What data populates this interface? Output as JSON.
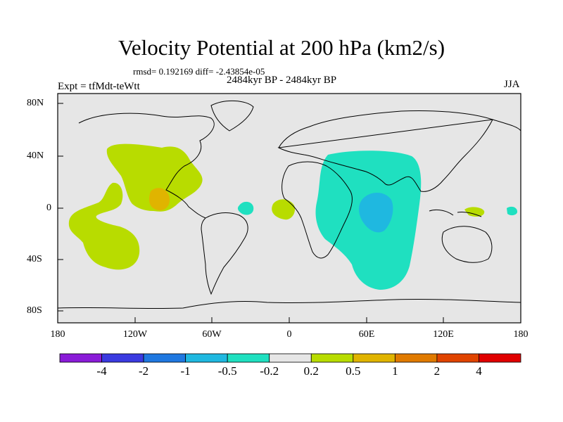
{
  "title": "Velocity Potential at 200 hPa (km2/s)",
  "stats": "rmsd= 0.192169 diff= -2.43854e-05",
  "experiment": "Expt = tfMdt-teWtt",
  "period": "2484kyr BP - 2484kyr BP",
  "season": "JJA",
  "lat_ticks": [
    "80N",
    "40N",
    "0",
    "40S",
    "80S"
  ],
  "lon_ticks": [
    "180",
    "120W",
    "60W",
    "0",
    "60E",
    "120E",
    "180"
  ],
  "colorbar": {
    "colors": [
      "#8a1bd8",
      "#3a3ae0",
      "#1f78e0",
      "#1fb8e0",
      "#1fe0c0",
      "#e6e6e6",
      "#b8dc00",
      "#e0b400",
      "#e07a00",
      "#e04400",
      "#e00000"
    ],
    "labels": [
      "-4",
      "-2",
      "-1",
      "-0.5",
      "-0.2",
      "0.2",
      "0.5",
      "1",
      "2",
      "4"
    ]
  },
  "colors": {
    "background": "#e6e6e6",
    "positive_weak": "#b8dc00",
    "positive_mid": "#e0b400",
    "negative_weak": "#1fe0c0",
    "negative_mid": "#1fb8e0"
  }
}
